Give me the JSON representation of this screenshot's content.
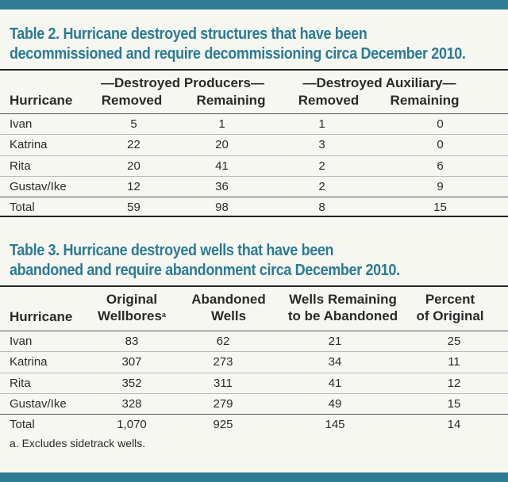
{
  "table2": {
    "title_line1": "Table 2. Hurricane destroyed structures that have been",
    "title_line2": "decommissioned and require decommissioning circa December 2010.",
    "group_producers": "—Destroyed Producers—",
    "group_auxiliary": "—Destroyed Auxiliary—",
    "col_hurricane": "Hurricane",
    "col_prod_removed": "Removed",
    "col_prod_remaining": "Remaining",
    "col_aux_removed": "Removed",
    "col_aux_remaining": "Remaining",
    "rows": [
      {
        "name": "Ivan",
        "prod_removed": "5",
        "prod_remaining": "1",
        "aux_removed": "1",
        "aux_remaining": "0"
      },
      {
        "name": "Katrina",
        "prod_removed": "22",
        "prod_remaining": "20",
        "aux_removed": "3",
        "aux_remaining": "0"
      },
      {
        "name": "Rita",
        "prod_removed": "20",
        "prod_remaining": "41",
        "aux_removed": "2",
        "aux_remaining": "6"
      },
      {
        "name": "Gustav/Ike",
        "prod_removed": "12",
        "prod_remaining": "36",
        "aux_removed": "2",
        "aux_remaining": "9"
      },
      {
        "name": "Total",
        "prod_removed": "59",
        "prod_remaining": "98",
        "aux_removed": "8",
        "aux_remaining": "15"
      }
    ]
  },
  "table3": {
    "title_line1": "Table 3. Hurricane destroyed wells that have been",
    "title_line2": "abandoned and require abandonment circa December 2010.",
    "col_hurricane": "Hurricane",
    "col_original_l1": "Original",
    "col_original_l2": "Wellbores",
    "col_original_sup": "a",
    "col_abandoned_l1": "Abandoned",
    "col_abandoned_l2": "Wells",
    "col_remaining_l1": "Wells Remaining",
    "col_remaining_l2": "to be Abandoned",
    "col_percent_l1": "Percent",
    "col_percent_l2": "of Original",
    "rows": [
      {
        "name": "Ivan",
        "original": "83",
        "abandoned": "62",
        "remaining": "21",
        "percent": "25"
      },
      {
        "name": "Katrina",
        "original": "307",
        "abandoned": "273",
        "remaining": "34",
        "percent": "11"
      },
      {
        "name": "Rita",
        "original": "352",
        "abandoned": "311",
        "remaining": "41",
        "percent": "12"
      },
      {
        "name": "Gustav/Ike",
        "original": "328",
        "abandoned": "279",
        "remaining": "49",
        "percent": "15"
      },
      {
        "name": "Total",
        "original": "1,070",
        "abandoned": "925",
        "remaining": "145",
        "percent": "14"
      }
    ],
    "footnote": "a. Excludes sidetrack wells."
  }
}
